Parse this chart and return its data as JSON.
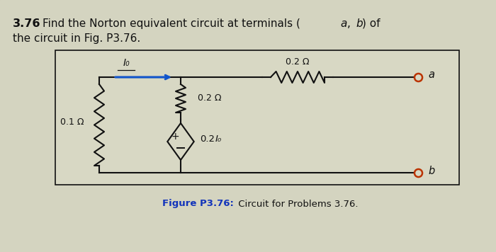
{
  "outer_bg": "#c8c8b8",
  "inner_bg": "#dcdccc",
  "box_bg": "#d8d8c4",
  "title_color": "#111111",
  "line_color": "#111111",
  "terminal_color": "#bb3300",
  "caption_color": "#1133bb",
  "arrow_color": "#1155cc",
  "resistor_01_label": "0.1 Ω",
  "resistor_02v_label": "0.2 Ω",
  "resistor_02h_label": "0.2 Ω",
  "source_label": "0.2",
  "source_italic": "I₀",
  "current_label": "I₀",
  "terminal_a": "a",
  "terminal_b": "b",
  "caption_bold": "Figure P3.76:",
  "caption_rest": " Circuit for Problems 3.76."
}
